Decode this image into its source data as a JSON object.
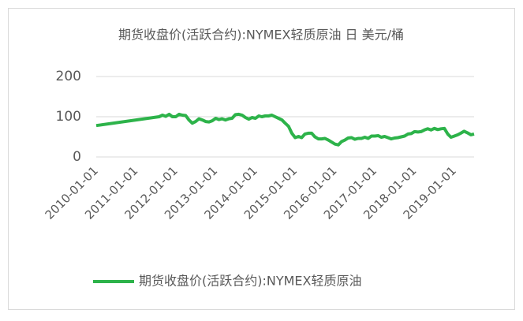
{
  "chart_data": {
    "type": "line",
    "title": "期货收盘价(活跃合约):NYMEX轻质原油 日 美元/桶",
    "x": [
      "2010-01-01",
      "2011-08-01",
      "2011-09-01",
      "2011-10-01",
      "2011-11-01",
      "2011-12-01",
      "2012-01-01",
      "2012-02-01",
      "2012-03-01",
      "2012-04-01",
      "2012-05-01",
      "2012-06-01",
      "2012-07-01",
      "2012-08-01",
      "2012-09-01",
      "2012-10-01",
      "2012-11-01",
      "2012-12-01",
      "2013-01-01",
      "2013-02-01",
      "2013-03-01",
      "2013-04-01",
      "2013-05-01",
      "2013-06-01",
      "2013-07-01",
      "2013-08-01",
      "2013-09-01",
      "2013-10-01",
      "2013-11-01",
      "2013-12-01",
      "2014-01-01",
      "2014-02-01",
      "2014-03-01",
      "2014-04-01",
      "2014-05-01",
      "2014-06-01",
      "2014-07-01",
      "2014-08-01",
      "2014-09-01",
      "2014-10-01",
      "2014-11-01",
      "2014-12-01",
      "2015-01-01",
      "2015-02-01",
      "2015-03-01",
      "2015-04-01",
      "2015-05-01",
      "2015-06-01",
      "2015-07-01",
      "2015-08-01",
      "2015-09-01",
      "2015-10-01",
      "2015-11-01",
      "2015-12-01",
      "2016-01-01",
      "2016-02-01",
      "2016-03-01",
      "2016-04-01",
      "2016-05-01",
      "2016-06-01",
      "2016-07-01",
      "2016-08-01",
      "2016-09-01",
      "2016-10-01",
      "2016-11-01",
      "2016-12-01",
      "2017-01-01",
      "2017-02-01",
      "2017-03-01",
      "2017-04-01",
      "2017-05-01",
      "2017-06-01",
      "2017-07-01",
      "2017-08-01",
      "2017-09-01",
      "2017-10-01",
      "2017-11-01",
      "2017-12-01",
      "2018-01-01",
      "2018-02-01",
      "2018-03-01",
      "2018-04-01",
      "2018-05-01",
      "2018-06-01",
      "2018-07-01",
      "2018-08-01",
      "2018-09-01",
      "2018-10-01",
      "2018-11-01",
      "2018-12-01",
      "2019-01-01",
      "2019-02-01",
      "2019-03-01",
      "2019-04-01",
      "2019-05-01",
      "2019-06-01",
      "2019-07-01"
    ],
    "series": [
      {
        "name": "期货收盘价(活跃合约):NYMEX轻质原油",
        "color": "#2db34a",
        "values": [
          78,
          100,
          104,
          101,
          106,
          100,
          100,
          106,
          104,
          103,
          92,
          84,
          88,
          95,
          92,
          88,
          87,
          90,
          96,
          93,
          95,
          92,
          95,
          96,
          105,
          106,
          104,
          98,
          94,
          98,
          96,
          102,
          100,
          102,
          102,
          104,
          100,
          96,
          92,
          84,
          76,
          59,
          48,
          51,
          48,
          57,
          59,
          59,
          50,
          45,
          45,
          46,
          42,
          37,
          32,
          30,
          38,
          42,
          47,
          48,
          44,
          46,
          46,
          49,
          46,
          52,
          52,
          53,
          49,
          51,
          48,
          45,
          47,
          48,
          50,
          52,
          57,
          58,
          63,
          62,
          63,
          67,
          70,
          67,
          71,
          68,
          70,
          71,
          57,
          49,
          52,
          55,
          59,
          64,
          60,
          55,
          57
        ]
      }
    ],
    "xlim": [
      "2010-01-01",
      "2019-07-01"
    ],
    "xticks": [
      "2010-01-01",
      "2011-01-01",
      "2012-01-01",
      "2013-01-01",
      "2014-01-01",
      "2015-01-01",
      "2016-01-01",
      "2017-01-01",
      "2018-01-01",
      "2019-01-01"
    ],
    "ylim": [
      0,
      200
    ],
    "yticks": [
      0,
      100,
      200
    ],
    "grid": true,
    "legend": "bottom"
  }
}
